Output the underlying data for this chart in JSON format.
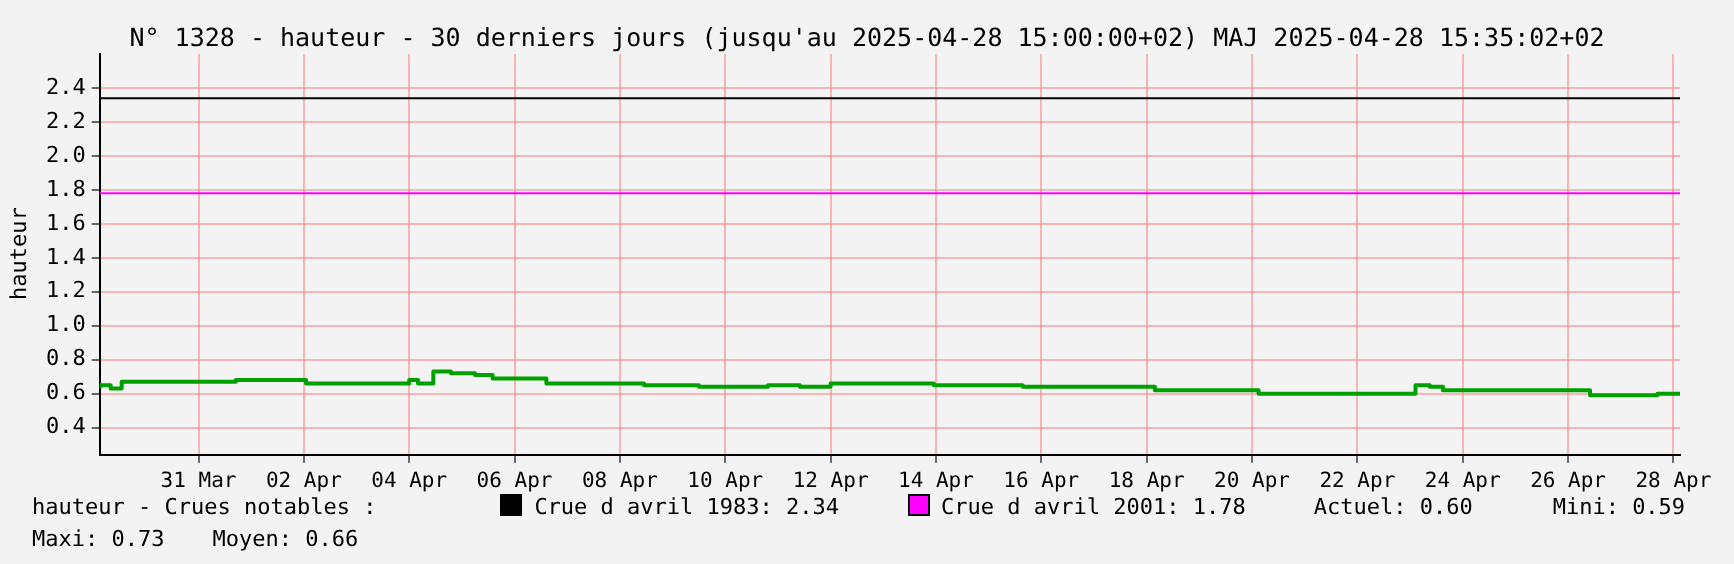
{
  "chart_data": {
    "type": "step",
    "title": "N° 1328 - hauteur - 30 derniers jours (jusqu'au 2025-04-28 15:00:00+02) MAJ 2025-04-28 15:35:02+02",
    "ylabel": "hauteur",
    "x": [
      "2025-03-29T15:00",
      "2025-03-29T20:00",
      "2025-03-30T01:00",
      "2025-03-30T18:00",
      "2025-04-01T05:00",
      "2025-04-02T13:00",
      "2025-04-04T12:00",
      "2025-04-04T16:00",
      "2025-04-04T23:00",
      "2025-04-05T07:00",
      "2025-04-05T18:00",
      "2025-04-06T02:00",
      "2025-04-07T02:30",
      "2025-04-08T23:00",
      "2025-04-10T00:00",
      "2025-04-11T07:30",
      "2025-04-11T22:00",
      "2025-04-12T12:00",
      "2025-04-14T11:00",
      "2025-04-16T03:30",
      "2025-04-18T15:45",
      "2025-04-20T15:00",
      "2025-04-23T14:30",
      "2025-04-23T21:00",
      "2025-04-24T03:00",
      "2025-04-26T22:00",
      "2025-04-28T04:45",
      "2025-04-28T12:30",
      "2025-04-28T15:00"
    ],
    "series": [
      {
        "color": "#00a000",
        "values": [
          0.63,
          0.65,
          0.63,
          0.67,
          0.67,
          0.68,
          0.66,
          0.68,
          0.66,
          0.73,
          0.72,
          0.71,
          0.69,
          0.66,
          0.65,
          0.64,
          0.65,
          0.64,
          0.66,
          0.65,
          0.64,
          0.62,
          0.6,
          0.65,
          0.64,
          0.62,
          0.59,
          0.6,
          0.6
        ]
      }
    ],
    "xlim": [
      "2025-03-29T15:00",
      "2025-04-28T15:00"
    ],
    "xticks": [
      {
        "value": "2025-03-31T12:00",
        "label": "31 Mar"
      },
      {
        "value": "2025-04-02T12:00",
        "label": "02 Apr"
      },
      {
        "value": "2025-04-04T12:00",
        "label": "04 Apr"
      },
      {
        "value": "2025-04-06T12:00",
        "label": "06 Apr"
      },
      {
        "value": "2025-04-08T12:00",
        "label": "08 Apr"
      },
      {
        "value": "2025-04-10T12:00",
        "label": "10 Apr"
      },
      {
        "value": "2025-04-12T12:00",
        "label": "12 Apr"
      },
      {
        "value": "2025-04-14T12:00",
        "label": "14 Apr"
      },
      {
        "value": "2025-04-16T12:00",
        "label": "16 Apr"
      },
      {
        "value": "2025-04-18T12:00",
        "label": "18 Apr"
      },
      {
        "value": "2025-04-20T12:00",
        "label": "20 Apr"
      },
      {
        "value": "2025-04-22T12:00",
        "label": "22 Apr"
      },
      {
        "value": "2025-04-24T12:00",
        "label": "24 Apr"
      },
      {
        "value": "2025-04-26T12:00",
        "label": "26 Apr"
      },
      {
        "value": "2025-04-28T12:00",
        "label": "28 Apr"
      }
    ],
    "ylim": [
      0.24,
      2.6
    ],
    "yticks": [
      0.4,
      0.6,
      0.8,
      {
        "value": 1,
        "label": "1.0"
      },
      1.2,
      1.4,
      1.6,
      1.8,
      {
        "value": 2,
        "label": "2.0"
      },
      2.2,
      2.4
    ],
    "grid": true,
    "legend": "bottom",
    "line_style": "solid",
    "marker": "none",
    "ref_lines": [
      {
        "axis": "y",
        "value": 2.34,
        "label": "Crue d avril 1983: 2.34",
        "color": "#000000"
      },
      {
        "axis": "y",
        "value": 1.78,
        "label": "Crue d avril 2001: 1.78",
        "color": "#ff00ff"
      }
    ],
    "annotations": [
      "hauteur - Crues notables :",
      "Actuel: 0.60",
      "Mini: 0.59",
      "Maxi: 0.73",
      "Moyen: 0.66"
    ]
  }
}
